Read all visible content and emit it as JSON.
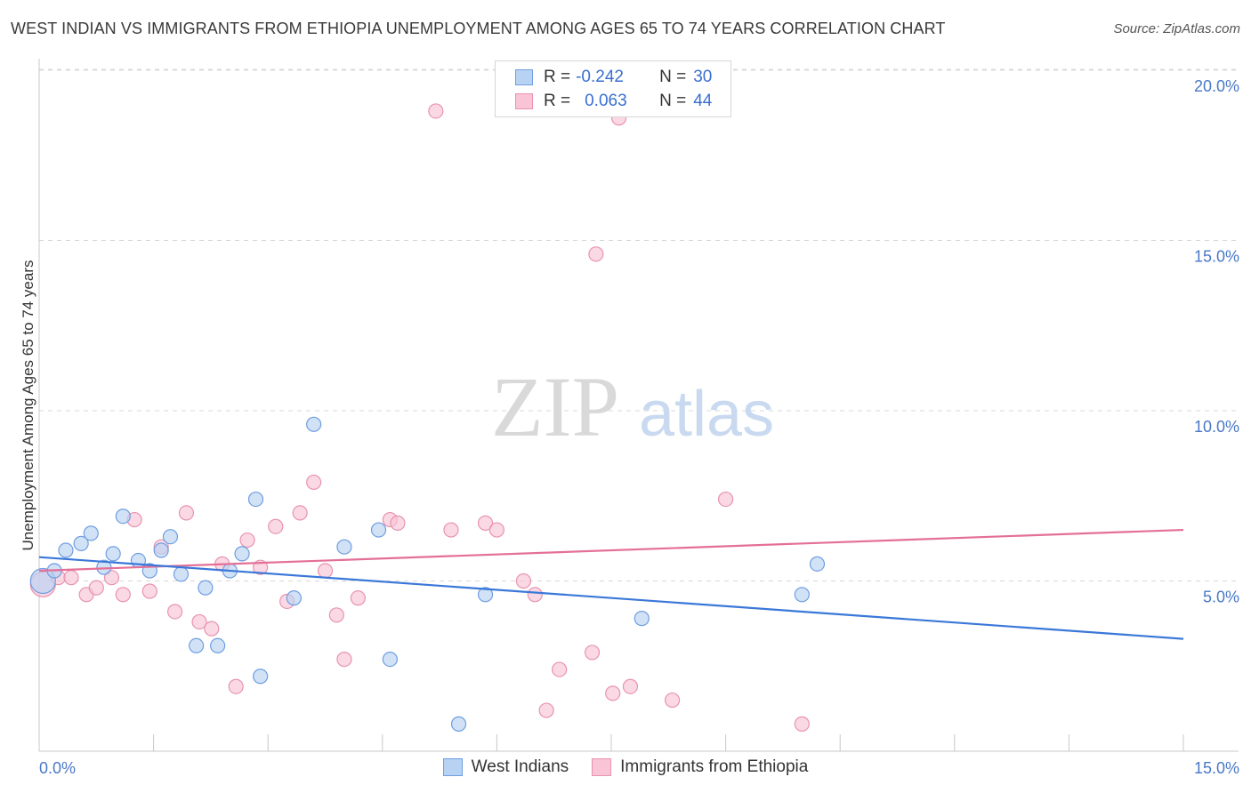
{
  "header": {
    "title": "WEST INDIAN VS IMMIGRANTS FROM ETHIOPIA UNEMPLOYMENT AMONG AGES 65 TO 74 YEARS CORRELATION CHART",
    "source": "Source: ZipAtlas.com"
  },
  "legend": {
    "series1": {
      "r_label": "R =",
      "r_value": "-0.242",
      "n_label": "N =",
      "n_value": "30"
    },
    "series2": {
      "r_label": "R =",
      "r_value": "0.063",
      "n_label": "N =",
      "n_value": "44"
    }
  },
  "watermark": {
    "zip": "ZIP",
    "atlas": "atlas"
  },
  "colors": {
    "blue_fill": "#b8d2f3",
    "blue_stroke": "#6f9ee0",
    "blue_line": "#3a78d8",
    "pink_fill": "#f8c4d6",
    "pink_stroke": "#e893b0",
    "pink_line": "#e46f97",
    "grid": "#d8d8d8",
    "axis_label": "#4a78c8"
  },
  "chart_data": {
    "type": "scatter",
    "title": "WEST INDIAN VS IMMIGRANTS FROM ETHIOPIA UNEMPLOYMENT AMONG AGES 65 TO 74 YEARS CORRELATION CHART",
    "xlabel": "",
    "ylabel": "Unemployment Among Ages 65 to 74 years",
    "xlim": [
      0,
      15
    ],
    "ylim": [
      0,
      20
    ],
    "x_tick_labels": [
      "0.0%",
      "15.0%"
    ],
    "y_ticks": [
      5,
      10,
      15,
      20
    ],
    "y_tick_labels": [
      "5.0%",
      "10.0%",
      "15.0%",
      "20.0%"
    ],
    "grid": true,
    "series": [
      {
        "name": "West Indians",
        "color": "#6f9ee0",
        "points": [
          [
            0.05,
            5.0
          ],
          [
            0.2,
            5.3
          ],
          [
            0.35,
            5.9
          ],
          [
            0.55,
            6.1
          ],
          [
            0.68,
            6.4
          ],
          [
            0.85,
            5.4
          ],
          [
            0.97,
            5.8
          ],
          [
            1.1,
            6.9
          ],
          [
            1.3,
            5.6
          ],
          [
            1.45,
            5.3
          ],
          [
            1.6,
            5.9
          ],
          [
            1.72,
            6.3
          ],
          [
            1.86,
            5.2
          ],
          [
            2.06,
            3.1
          ],
          [
            2.18,
            4.8
          ],
          [
            2.34,
            3.1
          ],
          [
            2.5,
            5.3
          ],
          [
            2.66,
            5.8
          ],
          [
            2.84,
            7.4
          ],
          [
            2.9,
            2.2
          ],
          [
            3.34,
            4.5
          ],
          [
            3.6,
            9.6
          ],
          [
            4.0,
            6.0
          ],
          [
            4.45,
            6.5
          ],
          [
            4.6,
            2.7
          ],
          [
            5.5,
            0.8
          ],
          [
            5.85,
            4.6
          ],
          [
            7.9,
            3.9
          ],
          [
            10.0,
            4.6
          ],
          [
            10.2,
            5.5
          ]
        ],
        "trend": {
          "x": [
            0,
            15
          ],
          "y": [
            5.7,
            3.3
          ]
        }
      },
      {
        "name": "Immigrants from Ethiopia",
        "color": "#e893b0",
        "points": [
          [
            0.05,
            4.9
          ],
          [
            0.25,
            5.1
          ],
          [
            0.42,
            5.1
          ],
          [
            0.62,
            4.6
          ],
          [
            0.75,
            4.8
          ],
          [
            0.95,
            5.1
          ],
          [
            1.1,
            4.6
          ],
          [
            1.25,
            6.8
          ],
          [
            1.45,
            4.7
          ],
          [
            1.6,
            6.0
          ],
          [
            1.78,
            4.1
          ],
          [
            1.93,
            7.0
          ],
          [
            2.1,
            3.8
          ],
          [
            2.26,
            3.6
          ],
          [
            2.4,
            5.5
          ],
          [
            2.58,
            1.9
          ],
          [
            2.73,
            6.2
          ],
          [
            2.9,
            5.4
          ],
          [
            3.1,
            6.6
          ],
          [
            3.25,
            4.4
          ],
          [
            3.42,
            7.0
          ],
          [
            3.6,
            7.9
          ],
          [
            3.75,
            5.3
          ],
          [
            3.9,
            4.0
          ],
          [
            4.0,
            2.7
          ],
          [
            4.18,
            4.5
          ],
          [
            4.6,
            6.8
          ],
          [
            4.7,
            6.7
          ],
          [
            5.2,
            18.8
          ],
          [
            5.4,
            6.5
          ],
          [
            5.85,
            6.7
          ],
          [
            6.0,
            6.5
          ],
          [
            6.35,
            5.0
          ],
          [
            6.5,
            4.6
          ],
          [
            6.65,
            1.2
          ],
          [
            6.82,
            2.4
          ],
          [
            7.25,
            2.9
          ],
          [
            7.3,
            14.6
          ],
          [
            7.52,
            1.7
          ],
          [
            7.6,
            18.6
          ],
          [
            7.75,
            1.9
          ],
          [
            8.3,
            1.5
          ],
          [
            9.0,
            7.4
          ],
          [
            10.0,
            0.8
          ]
        ],
        "trend": {
          "x": [
            0,
            15
          ],
          "y": [
            5.3,
            6.5
          ]
        }
      }
    ],
    "legend_position": "bottom"
  }
}
